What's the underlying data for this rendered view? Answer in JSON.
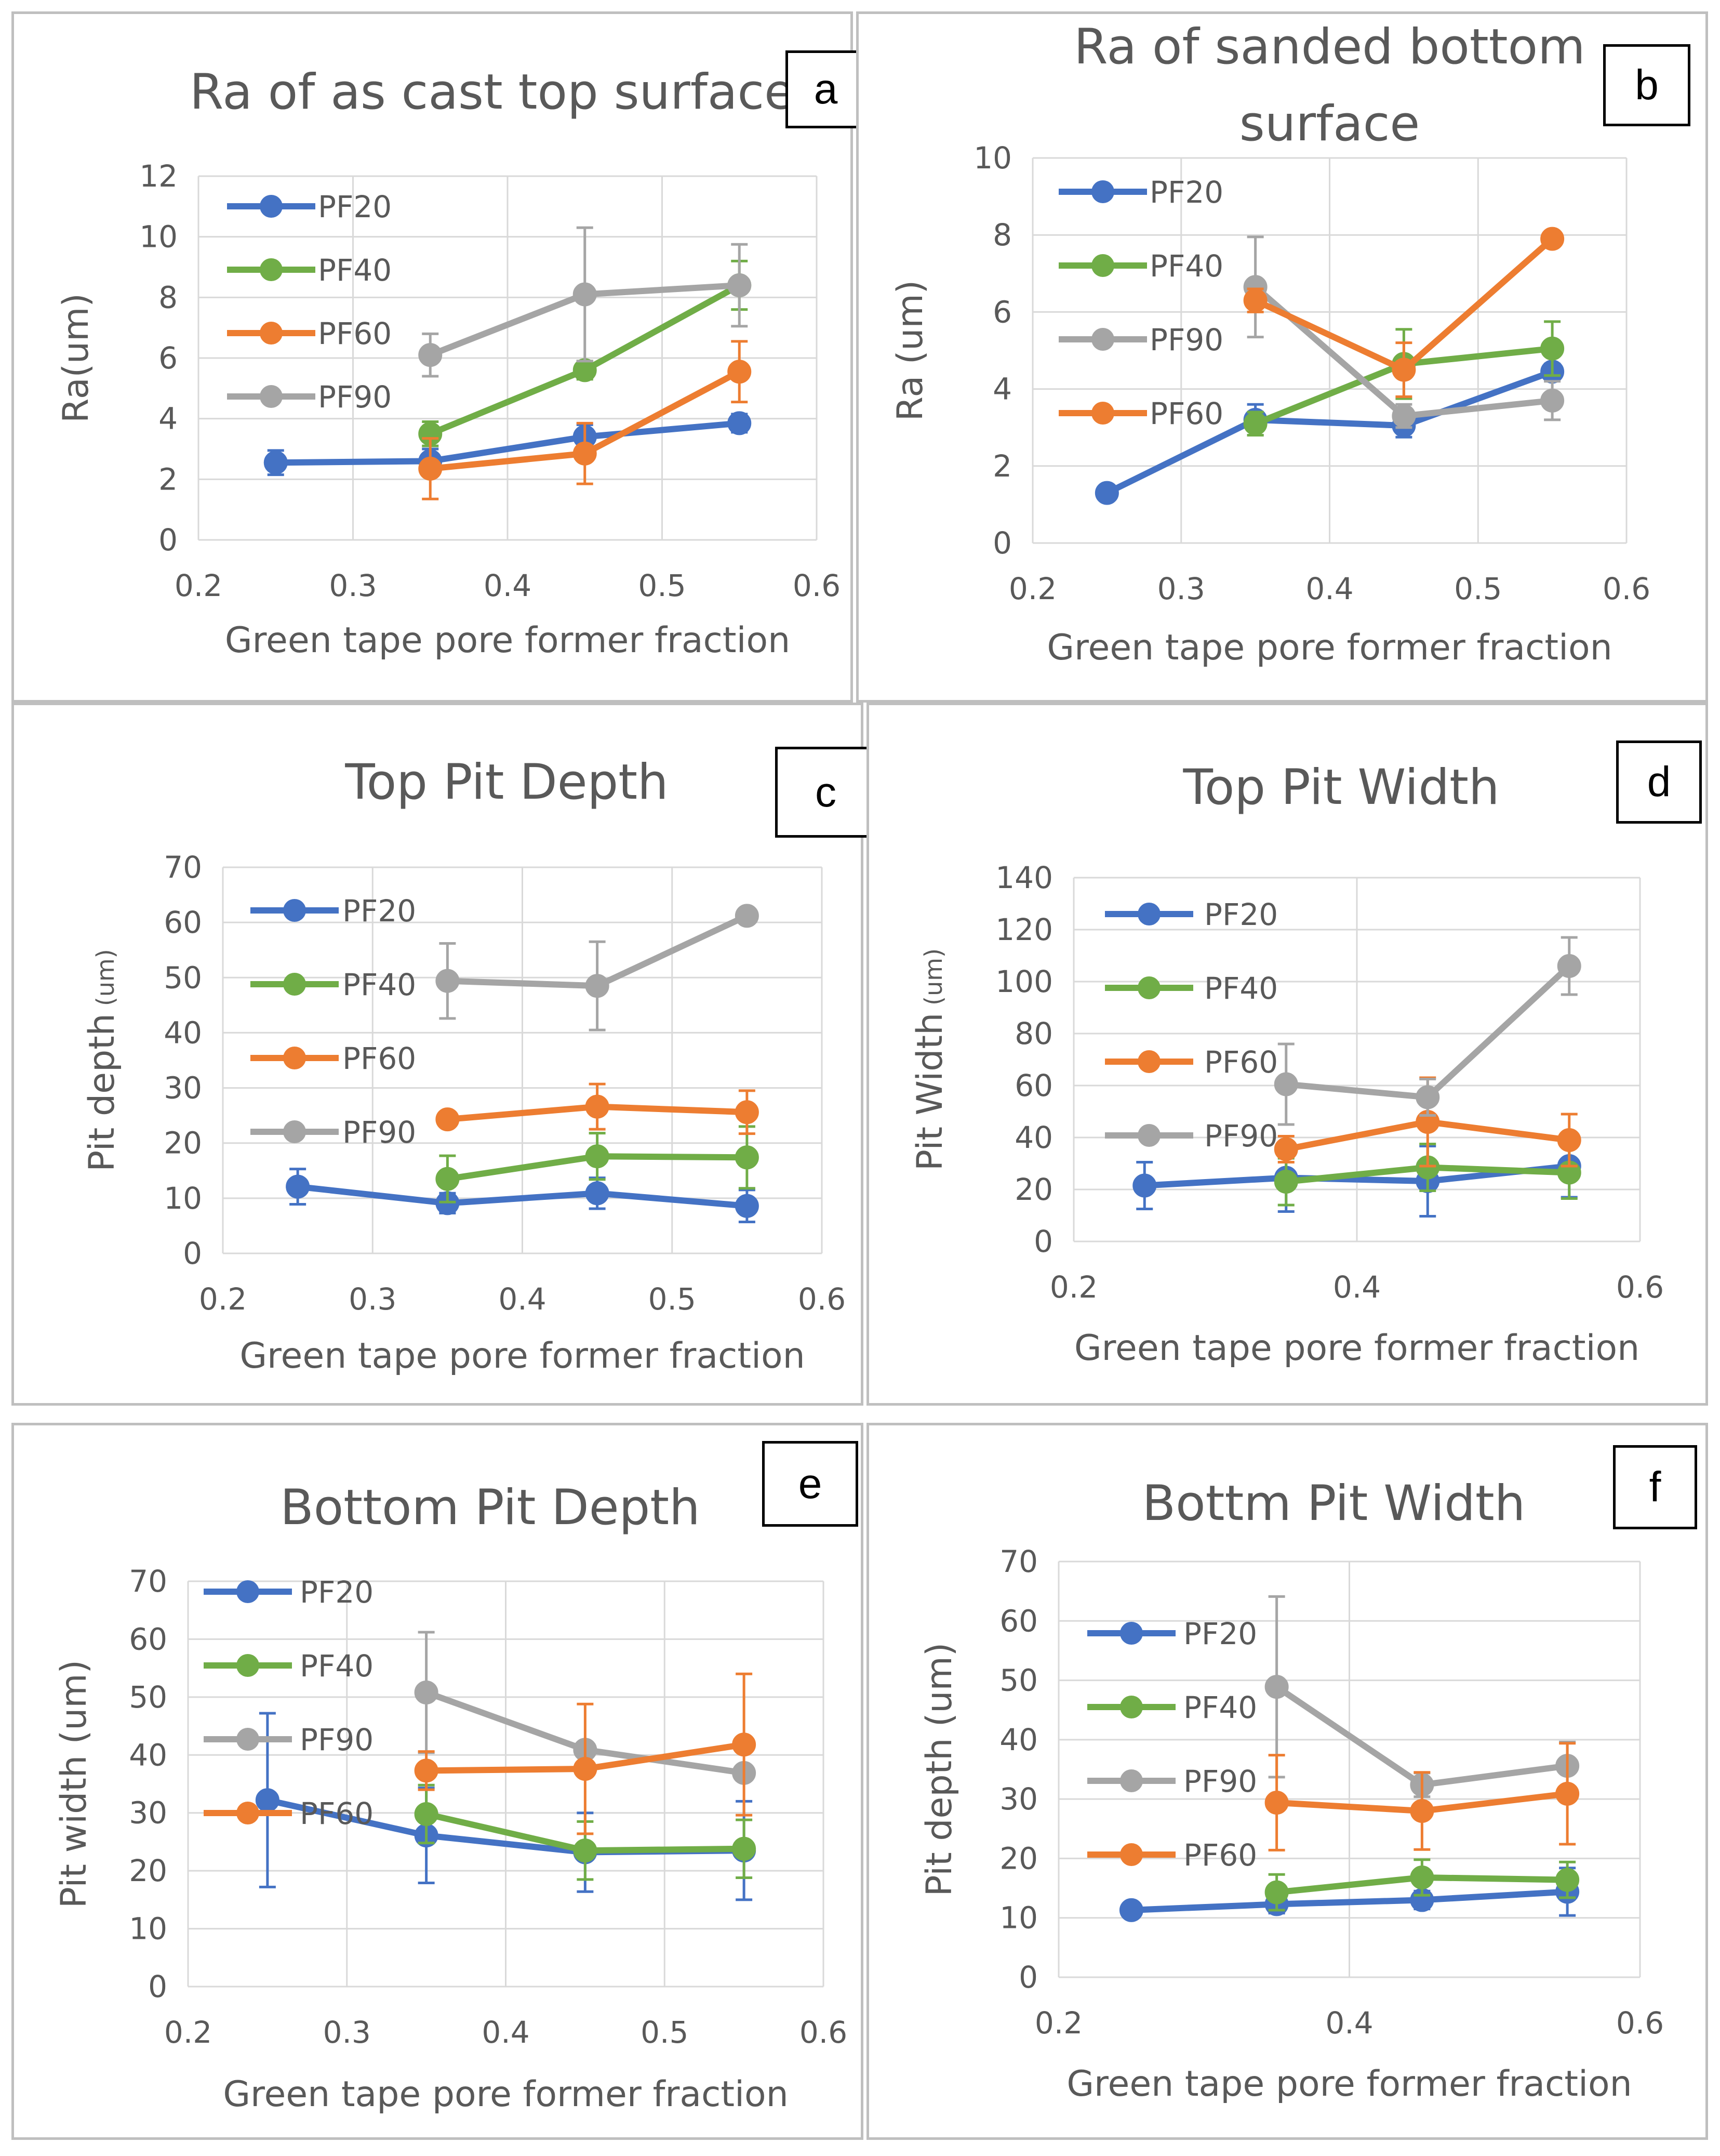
{
  "figure": {
    "colors": {
      "PF20": "#4472C4",
      "PF40": "#70AD47",
      "PF60": "#ED7D31",
      "PF90": "#A5A5A5"
    }
  },
  "chart_data": [
    {
      "id": "a",
      "label": "a",
      "type": "line",
      "title": "Ra of as cast top surface",
      "xlabel": "Green tape pore former fraction",
      "ylabel": "Ra(um)",
      "ylabel_unit": "",
      "xlim": [
        0.2,
        0.6
      ],
      "xticks": [
        0.2,
        0.3,
        0.4,
        0.5,
        0.6
      ],
      "xtick_labels": [
        "0.2",
        "0.3",
        "0.4",
        "0.5",
        "0.6"
      ],
      "ylim": [
        0,
        12
      ],
      "yticks": [
        0,
        2,
        4,
        6,
        8,
        10,
        12
      ],
      "ytick_labels": [
        "0",
        "2",
        "4",
        "6",
        "8",
        "10",
        "12"
      ],
      "grid": true,
      "legend_position": "top-left",
      "legend": [
        "PF20",
        "PF40",
        "PF60",
        "PF90"
      ],
      "series": [
        {
          "name": "PF20",
          "color": "#4472C4",
          "x": [
            0.25,
            0.35,
            0.45,
            0.55
          ],
          "y": [
            2.55,
            2.6,
            3.4,
            3.85
          ],
          "err": [
            0.4,
            0.4,
            0.4,
            0.3
          ]
        },
        {
          "name": "PF40",
          "color": "#70AD47",
          "x": [
            0.35,
            0.45,
            0.55
          ],
          "y": [
            3.5,
            5.6,
            8.4
          ],
          "err": [
            0.4,
            0.3,
            0.8
          ]
        },
        {
          "name": "PF60",
          "color": "#ED7D31",
          "x": [
            0.35,
            0.45,
            0.55
          ],
          "y": [
            2.35,
            2.85,
            5.55
          ],
          "err": [
            1.0,
            1.0,
            1.0
          ]
        },
        {
          "name": "PF90",
          "color": "#A5A5A5",
          "x": [
            0.35,
            0.45,
            0.55
          ],
          "y": [
            6.1,
            8.1,
            8.4
          ],
          "err": [
            0.7,
            2.2,
            1.35
          ]
        }
      ]
    },
    {
      "id": "b",
      "label": "b",
      "type": "line",
      "title": "Ra of sanded bottom surface",
      "title_lines": [
        "Ra of sanded bottom",
        "surface"
      ],
      "xlabel": "Green tape pore former fraction",
      "ylabel": "Ra (um)",
      "ylabel_unit": "",
      "xlim": [
        0.2,
        0.6
      ],
      "xticks": [
        0.2,
        0.3,
        0.4,
        0.5,
        0.6
      ],
      "xtick_labels": [
        "0.2",
        "0.3",
        "0.4",
        "0.5",
        "0.6"
      ],
      "ylim": [
        0,
        10
      ],
      "yticks": [
        0,
        2,
        4,
        6,
        8,
        10
      ],
      "ytick_labels": [
        "0",
        "2",
        "4",
        "6",
        "8",
        "10"
      ],
      "grid": true,
      "legend_position": "top-left",
      "legend": [
        "PF20",
        "PF40",
        "PF90",
        "PF60"
      ],
      "series": [
        {
          "name": "PF20",
          "color": "#4472C4",
          "x": [
            0.25,
            0.35,
            0.45,
            0.55
          ],
          "y": [
            1.3,
            3.2,
            3.05,
            4.45
          ],
          "err": [
            0,
            0.4,
            0.3,
            0.2
          ]
        },
        {
          "name": "PF40",
          "color": "#70AD47",
          "x": [
            0.35,
            0.45,
            0.55
          ],
          "y": [
            3.1,
            4.65,
            5.05
          ],
          "err": [
            0.3,
            0.9,
            0.7
          ]
        },
        {
          "name": "PF90",
          "color": "#A5A5A5",
          "x": [
            0.35,
            0.45,
            0.55
          ],
          "y": [
            6.65,
            3.3,
            3.7
          ],
          "err": [
            1.3,
            0.3,
            0.5
          ]
        },
        {
          "name": "PF60",
          "color": "#ED7D31",
          "x": [
            0.35,
            0.45,
            0.55
          ],
          "y": [
            6.3,
            4.5,
            7.9
          ],
          "err": [
            0.3,
            0.7,
            0.15
          ]
        }
      ]
    },
    {
      "id": "c",
      "label": "c",
      "type": "line",
      "title": "Top Pit Depth",
      "xlabel": "Green tape pore former fraction",
      "ylabel": "Pit depth",
      "ylabel_unit": "(um)",
      "xlim": [
        0.2,
        0.6
      ],
      "xticks": [
        0.2,
        0.3,
        0.4,
        0.5,
        0.6
      ],
      "xtick_labels": [
        "0.2",
        "0.3",
        "0.4",
        "0.5",
        "0.6"
      ],
      "ylim": [
        0,
        70
      ],
      "yticks": [
        0,
        10,
        20,
        30,
        40,
        50,
        60,
        70
      ],
      "ytick_labels": [
        "0",
        "10",
        "20",
        "30",
        "40",
        "50",
        "60",
        "70"
      ],
      "grid": true,
      "legend_position": "left",
      "legend": [
        "PF20",
        "PF40",
        "PF60",
        "PF90"
      ],
      "series": [
        {
          "name": "PF20",
          "color": "#4472C4",
          "x": [
            0.25,
            0.35,
            0.45,
            0.55
          ],
          "y": [
            12.1,
            9.1,
            10.9,
            8.6
          ],
          "err": [
            3.2,
            1.8,
            2.8,
            2.9
          ]
        },
        {
          "name": "PF40",
          "color": "#70AD47",
          "x": [
            0.35,
            0.45,
            0.55
          ],
          "y": [
            13.5,
            17.6,
            17.4
          ],
          "err": [
            4.2,
            4.2,
            5.6
          ]
        },
        {
          "name": "PF60",
          "color": "#ED7D31",
          "x": [
            0.35,
            0.45,
            0.55
          ],
          "y": [
            24.3,
            26.6,
            25.6
          ],
          "err": [
            0.5,
            4.1,
            3.9
          ]
        },
        {
          "name": "PF90",
          "color": "#A5A5A5",
          "x": [
            0.35,
            0.45,
            0.55
          ],
          "y": [
            49.4,
            48.5,
            61.2
          ],
          "err": [
            6.8,
            8.0,
            0.6
          ]
        }
      ]
    },
    {
      "id": "d",
      "label": "d",
      "type": "line",
      "title": "Top Pit Width",
      "xlabel": "Green tape pore former fraction",
      "ylabel": "Pit Width",
      "ylabel_unit": "(um)",
      "xlim": [
        0.2,
        0.6
      ],
      "xticks": [
        0.2,
        0.4,
        0.6
      ],
      "xtick_labels": [
        "0.2",
        "0.4",
        "0.6"
      ],
      "ylim": [
        0,
        140
      ],
      "yticks": [
        0,
        20,
        40,
        60,
        80,
        100,
        120,
        140
      ],
      "ytick_labels": [
        "0",
        "20",
        "40",
        "60",
        "80",
        "100",
        "120",
        "140"
      ],
      "grid": true,
      "legend_position": "left",
      "legend": [
        "PF20",
        "PF40",
        "PF60",
        "PF90"
      ],
      "series": [
        {
          "name": "PF20",
          "color": "#4472C4",
          "x": [
            0.25,
            0.35,
            0.45,
            0.55
          ],
          "y": [
            21.5,
            24.5,
            23.2,
            29.0
          ],
          "err": [
            9.0,
            13.0,
            13.5,
            12.0
          ]
        },
        {
          "name": "PF40",
          "color": "#70AD47",
          "x": [
            0.35,
            0.45,
            0.55
          ],
          "y": [
            23.0,
            28.5,
            26.5
          ],
          "err": [
            9.0,
            9.0,
            10.0
          ]
        },
        {
          "name": "PF60",
          "color": "#ED7D31",
          "x": [
            0.35,
            0.45,
            0.55
          ],
          "y": [
            35.5,
            46.0,
            39.0
          ],
          "err": [
            5.0,
            17.0,
            10.0
          ]
        },
        {
          "name": "PF90",
          "color": "#A5A5A5",
          "x": [
            0.35,
            0.45,
            0.55
          ],
          "y": [
            60.5,
            55.5,
            106.0
          ],
          "err": [
            15.5,
            7.0,
            11.0
          ]
        }
      ]
    },
    {
      "id": "e",
      "label": "e",
      "type": "line",
      "title": "Bottom Pit Depth",
      "xlabel": "Green tape pore former fraction",
      "ylabel": "Pit width (um)",
      "ylabel_unit": "",
      "xlim": [
        0.2,
        0.6
      ],
      "xticks": [
        0.2,
        0.3,
        0.4,
        0.5,
        0.6
      ],
      "xtick_labels": [
        "0.2",
        "0.3",
        "0.4",
        "0.5",
        "0.6"
      ],
      "ylim": [
        0,
        70
      ],
      "yticks": [
        0,
        10,
        20,
        30,
        40,
        50,
        60,
        70
      ],
      "ytick_labels": [
        "0",
        "10",
        "20",
        "30",
        "40",
        "50",
        "60",
        "70"
      ],
      "grid": true,
      "legend_position": "top-left",
      "legend": [
        "PF20",
        "PF40",
        "PF90",
        "PF60"
      ],
      "series": [
        {
          "name": "PF20",
          "color": "#4472C4",
          "x": [
            0.25,
            0.35,
            0.45,
            0.55
          ],
          "y": [
            32.2,
            26.1,
            23.2,
            23.5
          ],
          "err": [
            15.0,
            8.2,
            6.8,
            8.5
          ]
        },
        {
          "name": "PF40",
          "color": "#70AD47",
          "x": [
            0.35,
            0.45,
            0.55
          ],
          "y": [
            29.8,
            23.5,
            23.8
          ],
          "err": [
            5.0,
            5.0,
            5.0
          ]
        },
        {
          "name": "PF90",
          "color": "#A5A5A5",
          "x": [
            0.35,
            0.45,
            0.55
          ],
          "y": [
            50.8,
            40.9,
            36.9
          ],
          "err": [
            10.4,
            0,
            0
          ]
        },
        {
          "name": "PF60",
          "color": "#ED7D31",
          "x": [
            0.35,
            0.45,
            0.55
          ],
          "y": [
            37.3,
            37.6,
            41.8
          ],
          "err": [
            3.3,
            11.2,
            12.2
          ]
        }
      ]
    },
    {
      "id": "f",
      "label": "f",
      "type": "line",
      "title": "Bottm Pit Width",
      "xlabel": "Green tape pore former fraction",
      "ylabel": "Pit depth (um)",
      "ylabel_unit": "",
      "xlim": [
        0.2,
        0.6
      ],
      "xticks": [
        0.2,
        0.4,
        0.6
      ],
      "xtick_labels": [
        "0.2",
        "0.4",
        "0.6"
      ],
      "ylim": [
        0,
        70
      ],
      "yticks": [
        0,
        10,
        20,
        30,
        40,
        50,
        60,
        70
      ],
      "ytick_labels": [
        "0",
        "10",
        "20",
        "30",
        "40",
        "50",
        "60",
        "70"
      ],
      "grid": true,
      "legend_position": "left",
      "legend": [
        "PF20",
        "PF40",
        "PF90",
        "PF60"
      ],
      "series": [
        {
          "name": "PF20",
          "color": "#4472C4",
          "x": [
            0.25,
            0.35,
            0.45,
            0.55
          ],
          "y": [
            11.3,
            12.3,
            13.0,
            14.4
          ],
          "err": [
            0,
            1.5,
            1.5,
            4.0
          ]
        },
        {
          "name": "PF40",
          "color": "#70AD47",
          "x": [
            0.35,
            0.45,
            0.55
          ],
          "y": [
            14.3,
            16.8,
            16.4
          ],
          "err": [
            3.0,
            3.0,
            3.0
          ]
        },
        {
          "name": "PF90",
          "color": "#A5A5A5",
          "x": [
            0.35,
            0.45,
            0.55
          ],
          "y": [
            48.9,
            32.4,
            35.6
          ],
          "err": [
            15.2,
            2.0,
            4.0
          ]
        },
        {
          "name": "PF60",
          "color": "#ED7D31",
          "x": [
            0.35,
            0.45,
            0.55
          ],
          "y": [
            29.4,
            28.0,
            30.9
          ],
          "err": [
            8.0,
            6.5,
            8.5
          ]
        }
      ]
    }
  ]
}
